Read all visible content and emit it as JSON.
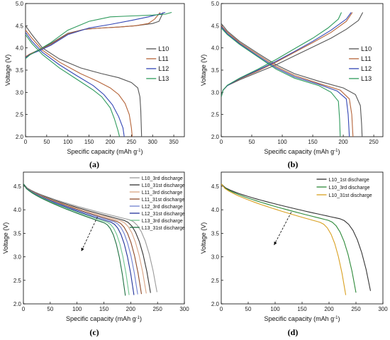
{
  "figure_labels": [
    "(a)",
    "(b)",
    "(c)",
    "(d)"
  ],
  "chart_data": [
    {
      "id": "a",
      "type": "line",
      "xlabel": "Specific capacity (mAh g",
      "xlabel_sup": "-1",
      "xlabel_close": ")",
      "ylabel": "Voltage (V)",
      "xlim": [
        0,
        375
      ],
      "ylim": [
        2.0,
        5.0
      ],
      "xticks": [
        0,
        50,
        100,
        150,
        200,
        250,
        300,
        350
      ],
      "yticks": [
        2.0,
        2.5,
        3.0,
        3.5,
        4.0,
        4.5,
        5.0
      ],
      "legend_position": "center-right",
      "series": [
        {
          "name": "L10",
          "color": "#555555",
          "charge": [
            [
              0,
              3.8
            ],
            [
              10,
              3.86
            ],
            [
              30,
              3.95
            ],
            [
              60,
              4.1
            ],
            [
              100,
              4.33
            ],
            [
              140,
              4.42
            ],
            [
              180,
              4.45
            ],
            [
              220,
              4.47
            ],
            [
              260,
              4.5
            ],
            [
              300,
              4.55
            ],
            [
              315,
              4.6
            ],
            [
              325,
              4.8
            ]
          ],
          "discharge": [
            [
              0,
              4.5
            ],
            [
              15,
              4.3
            ],
            [
              40,
              4.0
            ],
            [
              80,
              3.75
            ],
            [
              130,
              3.55
            ],
            [
              180,
              3.42
            ],
            [
              220,
              3.33
            ],
            [
              250,
              3.22
            ],
            [
              265,
              3.1
            ],
            [
              270,
              2.9
            ],
            [
              272,
              2.6
            ],
            [
              274,
              2.0
            ]
          ]
        },
        {
          "name": "L11",
          "color": "#b5653a",
          "charge": [
            [
              0,
              3.8
            ],
            [
              10,
              3.86
            ],
            [
              30,
              3.94
            ],
            [
              60,
              4.08
            ],
            [
              100,
              4.32
            ],
            [
              140,
              4.42
            ],
            [
              180,
              4.45
            ],
            [
              220,
              4.47
            ],
            [
              260,
              4.5
            ],
            [
              290,
              4.55
            ],
            [
              305,
              4.65
            ],
            [
              318,
              4.8
            ]
          ],
          "discharge": [
            [
              0,
              4.4
            ],
            [
              15,
              4.22
            ],
            [
              40,
              3.95
            ],
            [
              80,
              3.68
            ],
            [
              130,
              3.42
            ],
            [
              170,
              3.25
            ],
            [
              200,
              3.1
            ],
            [
              220,
              2.95
            ],
            [
              235,
              2.75
            ],
            [
              245,
              2.5
            ],
            [
              250,
              2.2
            ],
            [
              252,
              2.0
            ]
          ]
        },
        {
          "name": "L12",
          "color": "#3346b5",
          "charge": [
            [
              0,
              3.78
            ],
            [
              10,
              3.85
            ],
            [
              30,
              3.93
            ],
            [
              60,
              4.06
            ],
            [
              100,
              4.3
            ],
            [
              150,
              4.45
            ],
            [
              200,
              4.53
            ],
            [
              250,
              4.62
            ],
            [
              290,
              4.7
            ],
            [
              320,
              4.77
            ],
            [
              330,
              4.8
            ]
          ],
          "discharge": [
            [
              0,
              4.35
            ],
            [
              15,
              4.15
            ],
            [
              40,
              3.9
            ],
            [
              80,
              3.62
            ],
            [
              120,
              3.38
            ],
            [
              160,
              3.15
            ],
            [
              185,
              2.95
            ],
            [
              205,
              2.72
            ],
            [
              220,
              2.45
            ],
            [
              230,
              2.2
            ],
            [
              233,
              2.0
            ]
          ]
        },
        {
          "name": "L13",
          "color": "#2e9a5c",
          "charge": [
            [
              0,
              3.76
            ],
            [
              10,
              3.84
            ],
            [
              30,
              3.95
            ],
            [
              60,
              4.12
            ],
            [
              100,
              4.4
            ],
            [
              150,
              4.6
            ],
            [
              200,
              4.7
            ],
            [
              250,
              4.72
            ],
            [
              300,
              4.74
            ],
            [
              330,
              4.76
            ],
            [
              345,
              4.8
            ]
          ],
          "discharge": [
            [
              0,
              4.3
            ],
            [
              15,
              4.1
            ],
            [
              40,
              3.85
            ],
            [
              80,
              3.55
            ],
            [
              120,
              3.3
            ],
            [
              160,
              3.05
            ],
            [
              180,
              2.9
            ],
            [
              200,
              2.65
            ],
            [
              210,
              2.4
            ],
            [
              218,
              2.15
            ],
            [
              222,
              2.0
            ]
          ]
        }
      ]
    },
    {
      "id": "b",
      "type": "line",
      "xlabel": "Specific capacity (mAh g",
      "xlabel_sup": "-1",
      "xlabel_close": ")",
      "ylabel": "Voltage (V)",
      "xlim": [
        0,
        265
      ],
      "ylim": [
        2.0,
        5.0
      ],
      "xticks": [
        0,
        50,
        100,
        150,
        200,
        250
      ],
      "yticks": [
        2.0,
        2.5,
        3.0,
        3.5,
        4.0,
        4.5,
        5.0
      ],
      "legend_position": "top-right",
      "series": [
        {
          "name": "L10",
          "color": "#555555",
          "charge": [
            [
              0,
              2.9
            ],
            [
              3,
              3.05
            ],
            [
              10,
              3.15
            ],
            [
              30,
              3.28
            ],
            [
              60,
              3.45
            ],
            [
              90,
              3.62
            ],
            [
              120,
              3.82
            ],
            [
              150,
              4.02
            ],
            [
              180,
              4.22
            ],
            [
              205,
              4.42
            ],
            [
              225,
              4.62
            ],
            [
              232,
              4.8
            ]
          ],
          "discharge": [
            [
              0,
              4.55
            ],
            [
              10,
              4.38
            ],
            [
              30,
              4.15
            ],
            [
              60,
              3.88
            ],
            [
              90,
              3.62
            ],
            [
              120,
              3.42
            ],
            [
              160,
              3.25
            ],
            [
              200,
              3.1
            ],
            [
              220,
              2.95
            ],
            [
              228,
              2.7
            ],
            [
              230,
              2.3
            ],
            [
              231,
              2.0
            ]
          ]
        },
        {
          "name": "L11",
          "color": "#b5653a",
          "charge": [
            [
              0,
              2.9
            ],
            [
              3,
              3.05
            ],
            [
              10,
              3.15
            ],
            [
              30,
              3.3
            ],
            [
              60,
              3.48
            ],
            [
              90,
              3.68
            ],
            [
              120,
              3.9
            ],
            [
              150,
              4.12
            ],
            [
              180,
              4.35
            ],
            [
              205,
              4.6
            ],
            [
              215,
              4.8
            ]
          ],
          "discharge": [
            [
              0,
              4.5
            ],
            [
              10,
              4.35
            ],
            [
              30,
              4.12
            ],
            [
              60,
              3.85
            ],
            [
              90,
              3.58
            ],
            [
              120,
              3.38
            ],
            [
              160,
              3.2
            ],
            [
              195,
              3.05
            ],
            [
              210,
              2.85
            ],
            [
              214,
              2.5
            ],
            [
              216,
              2.0
            ]
          ]
        },
        {
          "name": "L12",
          "color": "#3346b5",
          "charge": [
            [
              0,
              2.9
            ],
            [
              3,
              3.05
            ],
            [
              10,
              3.15
            ],
            [
              30,
              3.31
            ],
            [
              60,
              3.5
            ],
            [
              90,
              3.7
            ],
            [
              120,
              3.92
            ],
            [
              150,
              4.15
            ],
            [
              180,
              4.4
            ],
            [
              205,
              4.65
            ],
            [
              213,
              4.8
            ]
          ],
          "discharge": [
            [
              0,
              4.48
            ],
            [
              10,
              4.32
            ],
            [
              30,
              4.1
            ],
            [
              60,
              3.82
            ],
            [
              90,
              3.55
            ],
            [
              120,
              3.35
            ],
            [
              160,
              3.18
            ],
            [
              190,
              3.03
            ],
            [
              205,
              2.85
            ],
            [
              208,
              2.5
            ],
            [
              210,
              2.0
            ]
          ]
        },
        {
          "name": "L13",
          "color": "#2e9a5c",
          "charge": [
            [
              0,
              2.9
            ],
            [
              3,
              3.05
            ],
            [
              10,
              3.16
            ],
            [
              30,
              3.32
            ],
            [
              60,
              3.52
            ],
            [
              90,
              3.74
            ],
            [
              120,
              3.98
            ],
            [
              150,
              4.22
            ],
            [
              175,
              4.45
            ],
            [
              192,
              4.65
            ],
            [
              197,
              4.8
            ]
          ],
          "discharge": [
            [
              0,
              4.45
            ],
            [
              10,
              4.3
            ],
            [
              30,
              4.08
            ],
            [
              60,
              3.8
            ],
            [
              90,
              3.52
            ],
            [
              120,
              3.32
            ],
            [
              160,
              3.15
            ],
            [
              180,
              3.0
            ],
            [
              192,
              2.8
            ],
            [
              194,
              2.4
            ],
            [
              195,
              2.0
            ]
          ]
        }
      ]
    },
    {
      "id": "c",
      "type": "line",
      "xlabel": "Specific capacity (mAh g",
      "xlabel_sup": "-1",
      "xlabel_close": ")",
      "ylabel": "Voltage (V)",
      "xlim": [
        0,
        300
      ],
      "ylim": [
        2.0,
        4.8
      ],
      "xticks": [
        0,
        50,
        100,
        150,
        200,
        250,
        300
      ],
      "yticks": [
        2.0,
        2.5,
        3.0,
        3.5,
        4.0,
        4.5
      ],
      "legend_position": "top-right",
      "series": [
        {
          "name": "L10_3rd discharge",
          "color": "#9a9a9a",
          "end": 249,
          "k": 1.0
        },
        {
          "name": "L10_31st discharge",
          "color": "#333333",
          "end": 237,
          "k": 0.97
        },
        {
          "name": "L11_3rd discharge",
          "color": "#d8a383",
          "end": 229,
          "k": 0.95
        },
        {
          "name": "L11_31st discharge",
          "color": "#8f4a28",
          "end": 220,
          "k": 0.93
        },
        {
          "name": "L12_3rd discharge",
          "color": "#6e7fd0",
          "end": 213,
          "k": 0.92
        },
        {
          "name": "L12_31st discharge",
          "color": "#22339a",
          "end": 206,
          "k": 0.9
        },
        {
          "name": "L13_3rd discharge",
          "color": "#6fc48f",
          "end": 197,
          "k": 0.9
        },
        {
          "name": "L13_31st discharge",
          "color": "#1d7040",
          "end": 190,
          "k": 0.88
        }
      ]
    },
    {
      "id": "d",
      "type": "line",
      "xlabel": "Specific capacity (mAh g",
      "xlabel_sup": "-1",
      "xlabel_close": ")",
      "ylabel": "Voltage (V)",
      "xlim": [
        0,
        300
      ],
      "ylim": [
        2.0,
        4.8
      ],
      "xticks": [
        0,
        50,
        100,
        150,
        200,
        250,
        300
      ],
      "yticks": [
        2.0,
        2.5,
        3.0,
        3.5,
        4.0,
        4.5
      ],
      "legend_position": "top-right",
      "series": [
        {
          "name": "L10_1st discharge",
          "color": "#333333",
          "end": 277,
          "k": 1.05
        },
        {
          "name": "L10_3rd discharge",
          "color": "#2e8a3a",
          "end": 250,
          "k": 0.98
        },
        {
          "name": "L10_31st discharge",
          "color": "#d9a020",
          "end": 231,
          "k": 0.9
        }
      ]
    }
  ]
}
